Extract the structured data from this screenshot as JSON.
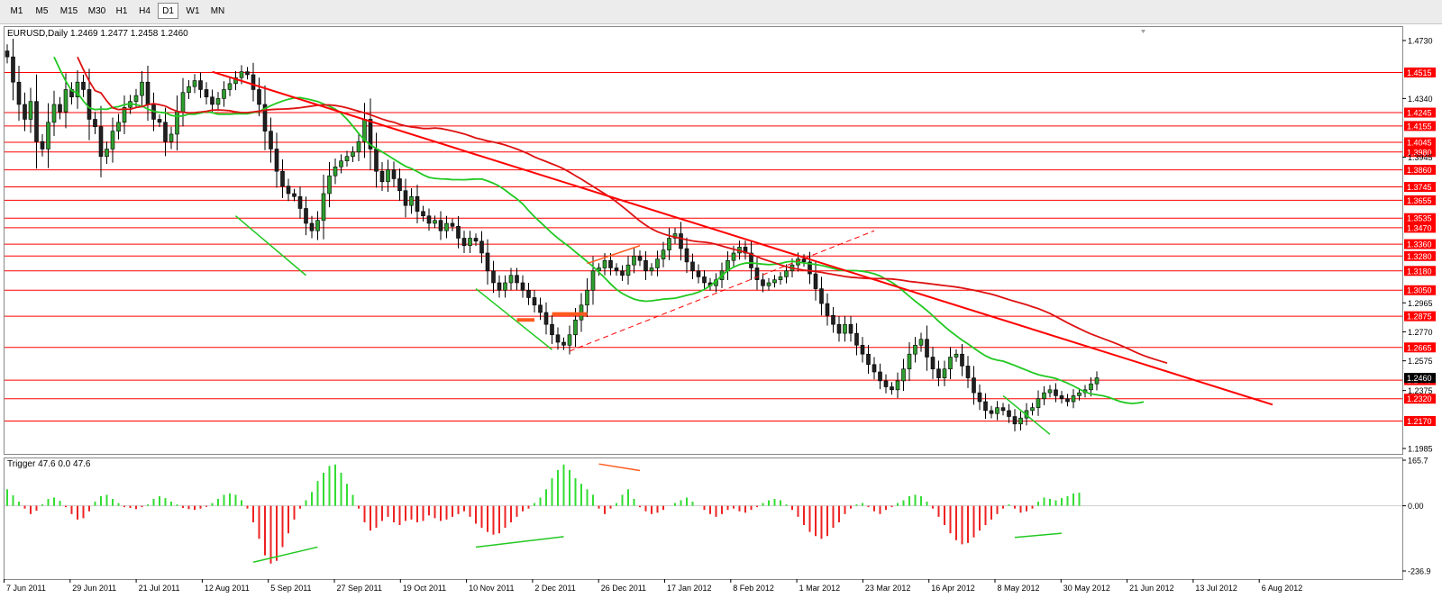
{
  "toolbar": {
    "timeframes": [
      "M1",
      "M5",
      "M15",
      "M30",
      "H1",
      "H4",
      "D1",
      "W1",
      "MN"
    ],
    "active": "D1"
  },
  "main_header": "EURUSD,Daily  1.2469 1.2477 1.2458 1.2460",
  "sub_header": "Trigger 47.6 0.0 47.6",
  "colors": {
    "bull": "#2f9e2f",
    "bear": "#202020",
    "level": "#ff0000",
    "ma_fast": "#22c822",
    "ma_slow": "#dd1111",
    "hist_pos": "#33dd33",
    "hist_neg": "#ee2222",
    "marker_orange": "#ff5a1e"
  },
  "chart_data": [
    {
      "type": "line",
      "title": "EURUSD,Daily  1.2469 1.2477 1.2458 1.2460",
      "ylim": [
        1.1985,
        1.473
      ],
      "y_ticks": [
        "1.4730",
        "1.4340",
        "1.3945",
        "1.2965",
        "1.2770",
        "1.2575",
        "1.2375",
        "1.1985"
      ],
      "x_tick_labels": [
        "7 Jun 2011",
        "29 Jun 2011",
        "21 Jul 2011",
        "12 Aug 2011",
        "5 Sep 2011",
        "27 Sep 2011",
        "19 Oct 2011",
        "10 Nov 2011",
        "2 Dec 2011",
        "26 Dec 2011",
        "17 Jan 2012",
        "8 Feb 2012",
        "1 Mar 2012",
        "23 Mar 2012",
        "16 Apr 2012",
        "8 May 2012",
        "30 May 2012",
        "21 Jun 2012",
        "13 Jul 2012",
        "6 Aug 2012"
      ],
      "horizontal_levels": [
        "1.4515",
        "1.4245",
        "1.4155",
        "1.4045",
        "1.3980",
        "1.3860",
        "1.3745",
        "1.3655",
        "1.3535",
        "1.3470",
        "1.3360",
        "1.3280",
        "1.3180",
        "1.3050",
        "1.2875",
        "1.2665",
        "1.2445",
        "1.2320",
        "1.2170"
      ],
      "current_price": "1.2460",
      "close_series": [
        1.462,
        1.445,
        1.43,
        1.42,
        1.432,
        1.405,
        1.4,
        1.418,
        1.43,
        1.425,
        1.44,
        1.435,
        1.445,
        1.44,
        1.42,
        1.415,
        1.395,
        1.4,
        1.412,
        1.418,
        1.428,
        1.432,
        1.436,
        1.445,
        1.43,
        1.42,
        1.418,
        1.405,
        1.41,
        1.425,
        1.438,
        1.442,
        1.446,
        1.44,
        1.435,
        1.43,
        1.434,
        1.44,
        1.444,
        1.448,
        1.452,
        1.45,
        1.44,
        1.43,
        1.412,
        1.4,
        1.385,
        1.375,
        1.37,
        1.368,
        1.36,
        1.35,
        1.345,
        1.352,
        1.37,
        1.382,
        1.388,
        1.392,
        1.395,
        1.398,
        1.405,
        1.42,
        1.4,
        1.385,
        1.378,
        1.386,
        1.38,
        1.372,
        1.362,
        1.368,
        1.358,
        1.355,
        1.35,
        1.352,
        1.345,
        1.35,
        1.348,
        1.34,
        1.335,
        1.34,
        1.338,
        1.33,
        1.318,
        1.31,
        1.305,
        1.31,
        1.315,
        1.31,
        1.305,
        1.3,
        1.295,
        1.29,
        1.282,
        1.275,
        1.27,
        1.268,
        1.275,
        1.285,
        1.295,
        1.305,
        1.318,
        1.32,
        1.325,
        1.32,
        1.318,
        1.315,
        1.322,
        1.328,
        1.325,
        1.318,
        1.32,
        1.326,
        1.332,
        1.34,
        1.343,
        1.333,
        1.324,
        1.318,
        1.314,
        1.31,
        1.308,
        1.312,
        1.318,
        1.325,
        1.33,
        1.334,
        1.33,
        1.32,
        1.312,
        1.308,
        1.31,
        1.312,
        1.314,
        1.318,
        1.322,
        1.326,
        1.324,
        1.316,
        1.306,
        1.296,
        1.288,
        1.282,
        1.276,
        1.282,
        1.276,
        1.268,
        1.262,
        1.255,
        1.25,
        1.244,
        1.24,
        1.238,
        1.244,
        1.252,
        1.262,
        1.268,
        1.272,
        1.26,
        1.252,
        1.246,
        1.252,
        1.26,
        1.262,
        1.254,
        1.246,
        1.236,
        1.23,
        1.224,
        1.222,
        1.226,
        1.224,
        1.22,
        1.215,
        1.219,
        1.224,
        1.226,
        1.232,
        1.236,
        1.238,
        1.234,
        1.232,
        1.23,
        1.234,
        1.236,
        1.238,
        1.242,
        1.246
      ]
    },
    {
      "type": "bar",
      "title": "Trigger 47.6 0.0 47.6",
      "ylim": [
        -236.9,
        165.7
      ],
      "y_ticks": [
        "165.7",
        "0.00",
        "-236.9"
      ],
      "series": [
        {
          "name": "Trigger",
          "values": [
            60,
            38,
            15,
            -10,
            -30,
            -18,
            5,
            25,
            30,
            18,
            -5,
            -30,
            -50,
            -45,
            -20,
            15,
            35,
            40,
            25,
            10,
            -5,
            -8,
            -12,
            -5,
            5,
            25,
            35,
            28,
            15,
            5,
            -8,
            -12,
            -15,
            -10,
            -4,
            10,
            25,
            40,
            45,
            40,
            20,
            -10,
            -60,
            -120,
            -180,
            -210,
            -200,
            -150,
            -100,
            -50,
            -10,
            20,
            50,
            90,
            120,
            145,
            150,
            120,
            80,
            40,
            -10,
            -60,
            -90,
            -80,
            -55,
            -40,
            -60,
            -70,
            -55,
            -50,
            -60,
            -55,
            -35,
            -45,
            -55,
            -50,
            -40,
            -30,
            -20,
            -40,
            -65,
            -80,
            -95,
            -105,
            -100,
            -80,
            -60,
            -40,
            -20,
            -10,
            10,
            30,
            60,
            100,
            130,
            150,
            130,
            100,
            80,
            60,
            40,
            -10,
            -30,
            -10,
            10,
            40,
            60,
            25,
            -5,
            -20,
            -30,
            -25,
            -15,
            0,
            10,
            20,
            30,
            15,
            0,
            -15,
            -30,
            -40,
            -30,
            -15,
            -10,
            -20,
            -25,
            -15,
            -5,
            10,
            20,
            25,
            20,
            5,
            -15,
            -40,
            -70,
            -95,
            -110,
            -120,
            -110,
            -80,
            -60,
            -30,
            -10,
            5,
            10,
            -5,
            -20,
            -30,
            -15,
            -5,
            10,
            20,
            35,
            40,
            35,
            15,
            -10,
            -40,
            -70,
            -100,
            -125,
            -140,
            -135,
            -115,
            -90,
            -70,
            -50,
            -30,
            -10,
            5,
            -10,
            -25,
            -20,
            -10,
            15,
            30,
            25,
            20,
            28,
            35,
            45,
            47.6
          ]
        }
      ]
    }
  ]
}
